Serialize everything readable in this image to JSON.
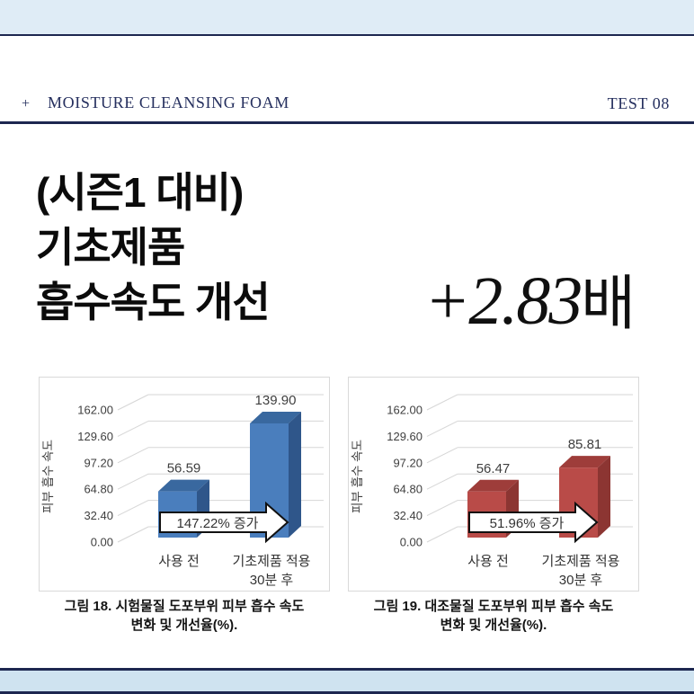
{
  "header": {
    "plus_mark": "+",
    "title": "MOISTURE CLEANSING FOAM",
    "test_label": "TEST 08"
  },
  "headline": {
    "line1": "(시즌1 대비)",
    "line2": "기초제품",
    "line3": "흡수속도 개선"
  },
  "highlight": {
    "value": "+2.83",
    "unit": "배"
  },
  "colors": {
    "navy_line": "#1d2750",
    "top_band": "#dfecf6",
    "bottom_band": "#cfe3f0",
    "blue_bar": "#4a7ebd",
    "red_bar": "#b94b48",
    "gridline": "#d6d6d6",
    "chart_text": "#3f3f3f"
  },
  "chart_data": [
    {
      "type": "bar",
      "style": "3d",
      "title": "",
      "categories": [
        "사용 전",
        "기초제품 적용 30분 후"
      ],
      "category_line1": "사용 전",
      "category2_line1": "기초제품 적용",
      "category2_line2": "30분 후",
      "values": [
        56.59,
        139.9
      ],
      "value_labels": [
        "56.59",
        "139.90"
      ],
      "ylabel": "피부 흡수 속도",
      "xlabel": "",
      "yticks": [
        "162.00",
        "129.60",
        "97.20",
        "64.80",
        "32.40",
        "0.00"
      ],
      "ytick_values": [
        162.0,
        129.6,
        97.2,
        64.8,
        32.4,
        0.0
      ],
      "ylim": [
        0,
        162
      ],
      "grid": true,
      "legend": false,
      "annotation": "147.22% 증가",
      "bar_colors": {
        "front": "#4a7ebd",
        "top": "#39689f",
        "side": "#2f568a"
      },
      "caption_line1": "그림 18. 시험물질 도포부위 피부 흡수 속도",
      "caption_line2": "변화 및 개선율(%)."
    },
    {
      "type": "bar",
      "style": "3d",
      "title": "",
      "categories": [
        "사용 전",
        "기초제품 적용 30분 후"
      ],
      "category_line1": "사용 전",
      "category2_line1": "기초제품 적용",
      "category2_line2": "30분 후",
      "values": [
        56.47,
        85.81
      ],
      "value_labels": [
        "56.47",
        "85.81"
      ],
      "ylabel": "피부 흡수 속도",
      "xlabel": "",
      "yticks": [
        "162.00",
        "129.60",
        "97.20",
        "64.80",
        "32.40",
        "0.00"
      ],
      "ytick_values": [
        162.0,
        129.6,
        97.2,
        64.8,
        32.4,
        0.0
      ],
      "ylim": [
        0,
        162
      ],
      "grid": true,
      "legend": false,
      "annotation": "51.96% 증가",
      "bar_colors": {
        "front": "#b94b48",
        "top": "#9e3d3a",
        "side": "#8c3532"
      },
      "caption_line1": "그림 19. 대조물질 도포부위 피부 흡수 속도",
      "caption_line2": "변화 및 개선율(%)."
    }
  ]
}
